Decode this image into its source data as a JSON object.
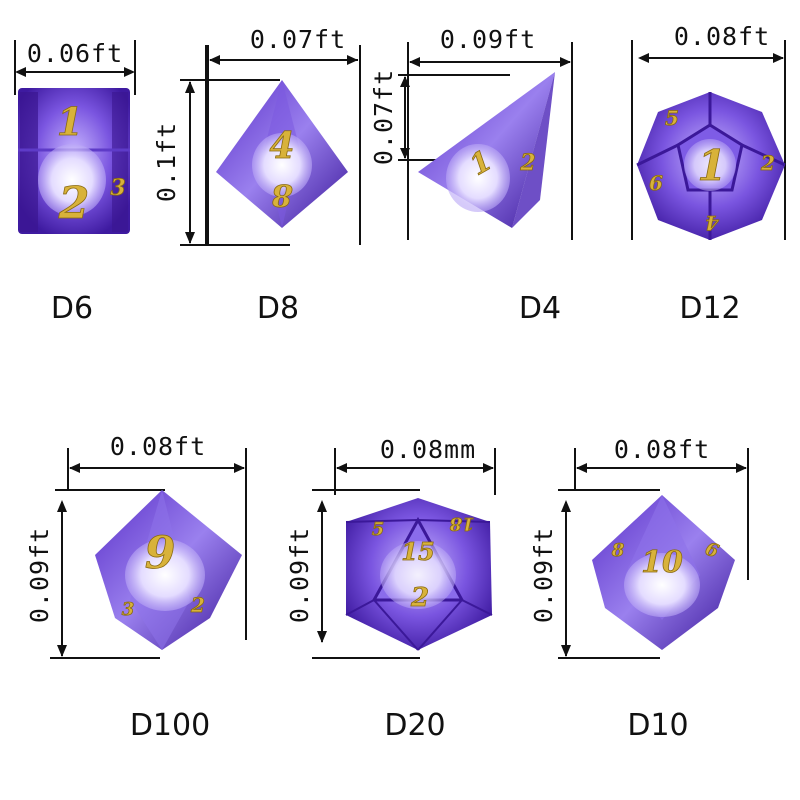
{
  "colors": {
    "background": "#ffffff",
    "resin_dark": "#4a23b8",
    "resin_light": "#a78ff0",
    "number_gold": "#d8b23a",
    "glitter": "#e6e0ff",
    "line": "#111111"
  },
  "dice": [
    {
      "id": "d6",
      "name": "D6",
      "width_label": "0.06ft",
      "height_label": "",
      "numbers": [
        "1",
        "2",
        "3"
      ]
    },
    {
      "id": "d8",
      "name": "D8",
      "width_label": "0.07ft",
      "height_label": "0.1ft",
      "numbers": [
        "4",
        "8"
      ]
    },
    {
      "id": "d4",
      "name": "D4",
      "width_label": "0.09ft",
      "height_label": "0.07ft",
      "numbers": [
        "1",
        "2"
      ]
    },
    {
      "id": "d12",
      "name": "D12",
      "width_label": "0.08ft",
      "height_label": "",
      "numbers": [
        "1",
        "5",
        "6",
        "2",
        "4"
      ]
    },
    {
      "id": "d100",
      "name": "D100",
      "width_label": "0.08ft",
      "height_label": "0.09ft",
      "numbers": [
        "9",
        "3",
        "2"
      ]
    },
    {
      "id": "d20",
      "name": "D20",
      "width_label": "0.08mm",
      "height_label": "0.09ft",
      "numbers": [
        "15",
        "5",
        "18",
        "2"
      ]
    },
    {
      "id": "d10",
      "name": "D10",
      "width_label": "0.08ft",
      "height_label": "0.09ft",
      "numbers": [
        "10",
        "8",
        "6"
      ]
    }
  ]
}
